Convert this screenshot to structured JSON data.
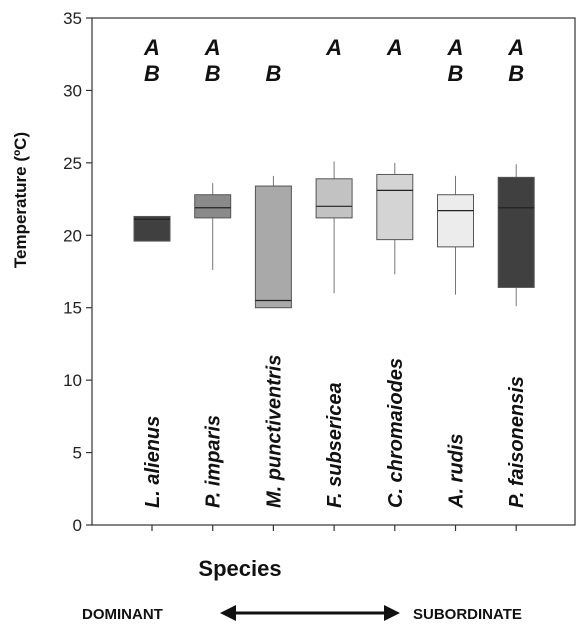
{
  "chart_data": {
    "type": "box",
    "xlabel": "Species",
    "ylabel": "Temperature (ºC)",
    "ylim": [
      0,
      35
    ],
    "yticks": [
      0,
      5,
      10,
      15,
      20,
      25,
      30,
      35
    ],
    "grid": false,
    "categories": [
      "L. alienus",
      "P. imparis",
      "M. punctiventris",
      "F. subsericea",
      "C. chromaiodes",
      "A. rudis",
      "P. faisonensis"
    ],
    "boxes": [
      {
        "category": "L. alienus",
        "whisker_low": 19.6,
        "q1": 19.6,
        "median": 21.1,
        "q3": 21.3,
        "whisker_high": 21.3,
        "fill": "#404040",
        "significance": [
          "A",
          "B"
        ]
      },
      {
        "category": "P. imparis",
        "whisker_low": 17.6,
        "q1": 21.2,
        "median": 21.9,
        "q3": 22.8,
        "whisker_high": 23.6,
        "fill": "#8a8a8a",
        "significance": [
          "A",
          "B"
        ]
      },
      {
        "category": "M. punctiventris",
        "whisker_low": 15.0,
        "q1": 15.0,
        "median": 15.5,
        "q3": 23.4,
        "whisker_high": 24.1,
        "fill": "#a9a9a9",
        "significance": [
          "B"
        ]
      },
      {
        "category": "F. subsericea",
        "whisker_low": 16.0,
        "q1": 21.2,
        "median": 22.0,
        "q3": 23.9,
        "whisker_high": 25.1,
        "fill": "#c2c2c2",
        "significance": [
          "A"
        ]
      },
      {
        "category": "C. chromaiodes",
        "whisker_low": 17.3,
        "q1": 19.7,
        "median": 23.1,
        "q3": 24.2,
        "whisker_high": 25.0,
        "fill": "#d4d4d4",
        "significance": [
          "A"
        ]
      },
      {
        "category": "A. rudis",
        "whisker_low": 15.9,
        "q1": 19.2,
        "median": 21.7,
        "q3": 22.8,
        "whisker_high": 24.1,
        "fill": "#ececec",
        "significance": [
          "A",
          "B"
        ]
      },
      {
        "category": "P. faisonensis",
        "whisker_low": 15.1,
        "q1": 16.4,
        "median": 21.9,
        "q3": 24.0,
        "whisker_high": 24.9,
        "fill": "#404040",
        "significance": [
          "A",
          "B"
        ]
      }
    ],
    "gradient": {
      "left_label": "DOMINANT",
      "right_label": "SUBORDINATE"
    }
  }
}
